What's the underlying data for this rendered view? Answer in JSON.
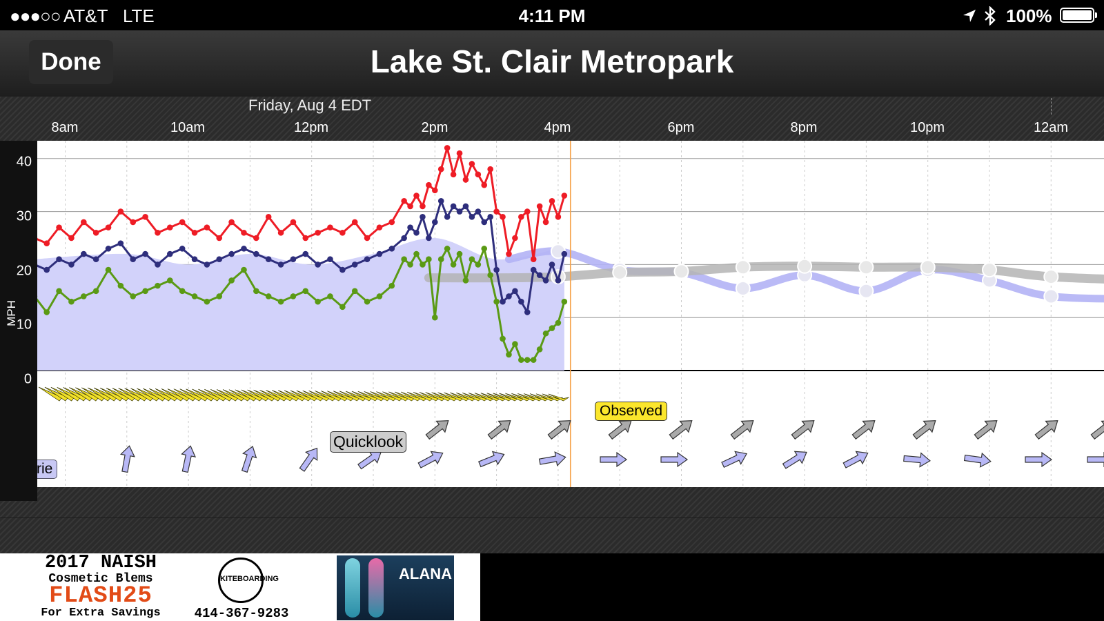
{
  "status_bar": {
    "signal": "●●●○○",
    "carrier": "AT&T",
    "network": "LTE",
    "time": "4:11 PM",
    "battery": "100%"
  },
  "nav": {
    "done_label": "Done",
    "title": "Lake St. Clair Metropark"
  },
  "chart_header": {
    "date": "Friday, Aug 4 EDT",
    "hours": [
      "8am",
      "10am",
      "12pm",
      "2pm",
      "4pm",
      "6pm",
      "8pm",
      "10pm",
      "12am"
    ]
  },
  "labels": {
    "observed": "Observed",
    "quicklook": "Quicklook",
    "model_partial": "rie"
  },
  "colors": {
    "gust": "#ee1c25",
    "average": "#2e2e7c",
    "lull": "#5a9a14",
    "forecast_band": "#d2d2fa",
    "forecast_line": "#b3b3f5",
    "quicklook_line": "#b4b4b4",
    "now_marker": "#f5a24a",
    "observed_arrows": "#f2e12a"
  },
  "chart_data": {
    "type": "line",
    "xlabel": "",
    "ylabel": "MPH",
    "ylim": [
      0,
      44
    ],
    "yticks": [
      0,
      10,
      20,
      30,
      40
    ],
    "xlim": [
      "7:30",
      "1:35"
    ],
    "now": "16:12",
    "series": [
      {
        "name": "",
        "color": "#ee1c25",
        "x": [
          "7:30",
          "7:42",
          "7:54",
          "8:06",
          "8:18",
          "8:30",
          "8:42",
          "8:54",
          "9:06",
          "9:18",
          "9:30",
          "9:42",
          "9:54",
          "10:06",
          "10:18",
          "10:30",
          "10:42",
          "10:54",
          "11:06",
          "11:18",
          "11:30",
          "11:42",
          "11:54",
          "12:06",
          "12:18",
          "12:30",
          "12:42",
          "12:54",
          "13:06",
          "13:18",
          "13:30",
          "13:36",
          "13:42",
          "13:48",
          "13:54",
          "14:00",
          "14:06",
          "14:12",
          "14:18",
          "14:24",
          "14:30",
          "14:36",
          "14:42",
          "14:48",
          "14:54",
          "15:00",
          "15:06",
          "15:12",
          "15:18",
          "15:24",
          "15:30",
          "15:36",
          "15:42",
          "15:48",
          "15:54",
          "16:00",
          "16:06"
        ],
        "values": [
          25,
          24,
          27,
          25,
          28,
          26,
          27,
          30,
          28,
          29,
          26,
          27,
          28,
          26,
          27,
          25,
          28,
          26,
          25,
          29,
          26,
          28,
          25,
          26,
          27,
          26,
          28,
          25,
          27,
          28,
          32,
          31,
          33,
          31,
          35,
          34,
          38,
          42,
          37,
          41,
          36,
          39,
          37,
          35,
          38,
          30,
          29,
          22,
          25,
          29,
          30,
          21,
          31,
          28,
          32,
          29,
          33
        ]
      },
      {
        "name": "",
        "color": "#2e2e7c",
        "x": [
          "7:30",
          "7:42",
          "7:54",
          "8:06",
          "8:18",
          "8:30",
          "8:42",
          "8:54",
          "9:06",
          "9:18",
          "9:30",
          "9:42",
          "9:54",
          "10:06",
          "10:18",
          "10:30",
          "10:42",
          "10:54",
          "11:06",
          "11:18",
          "11:30",
          "11:42",
          "11:54",
          "12:06",
          "12:18",
          "12:30",
          "12:42",
          "12:54",
          "13:06",
          "13:18",
          "13:30",
          "13:36",
          "13:42",
          "13:48",
          "13:54",
          "14:00",
          "14:06",
          "14:12",
          "14:18",
          "14:24",
          "14:30",
          "14:36",
          "14:42",
          "14:48",
          "14:54",
          "15:00",
          "15:06",
          "15:12",
          "15:18",
          "15:24",
          "15:30",
          "15:36",
          "15:42",
          "15:48",
          "15:54",
          "16:00",
          "16:06"
        ],
        "values": [
          20,
          19,
          21,
          20,
          22,
          21,
          23,
          24,
          21,
          22,
          20,
          22,
          23,
          21,
          20,
          21,
          22,
          23,
          22,
          21,
          20,
          21,
          22,
          20,
          21,
          19,
          20,
          21,
          22,
          23,
          25,
          27,
          26,
          29,
          25,
          28,
          32,
          29,
          31,
          30,
          31,
          29,
          30,
          28,
          29,
          19,
          13,
          14,
          15,
          13,
          11,
          19,
          18,
          17,
          20,
          17,
          22
        ]
      },
      {
        "name": "",
        "color": "#5a9a14",
        "x": [
          "7:30",
          "7:42",
          "7:54",
          "8:06",
          "8:18",
          "8:30",
          "8:42",
          "8:54",
          "9:06",
          "9:18",
          "9:30",
          "9:42",
          "9:54",
          "10:06",
          "10:18",
          "10:30",
          "10:42",
          "10:54",
          "11:06",
          "11:18",
          "11:30",
          "11:42",
          "11:54",
          "12:06",
          "12:18",
          "12:30",
          "12:42",
          "12:54",
          "13:06",
          "13:18",
          "13:30",
          "13:36",
          "13:42",
          "13:48",
          "13:54",
          "14:00",
          "14:06",
          "14:12",
          "14:18",
          "14:24",
          "14:30",
          "14:36",
          "14:42",
          "14:48",
          "14:54",
          "15:00",
          "15:06",
          "15:12",
          "15:18",
          "15:24",
          "15:30",
          "15:36",
          "15:42",
          "15:48",
          "15:54",
          "16:00",
          "16:06"
        ],
        "values": [
          14,
          11,
          15,
          13,
          14,
          15,
          19,
          16,
          14,
          15,
          16,
          17,
          15,
          14,
          13,
          14,
          17,
          19,
          15,
          14,
          13,
          14,
          15,
          13,
          14,
          12,
          15,
          13,
          14,
          16,
          21,
          20,
          22,
          20,
          21,
          10,
          21,
          23,
          20,
          22,
          17,
          21,
          20,
          23,
          18,
          13,
          6,
          3,
          5,
          2,
          2,
          2,
          4,
          7,
          8,
          9,
          13
        ]
      },
      {
        "name": "",
        "color": "#b3b3f5",
        "x": [
          "15:12",
          "16:00",
          "17:00",
          "18:00",
          "19:00",
          "20:00",
          "21:00",
          "22:00",
          "23:00",
          "0:00",
          "1:35"
        ],
        "values": [
          21,
          22.5,
          19,
          18.5,
          15.5,
          18,
          15,
          19,
          17,
          14,
          13.5
        ]
      },
      {
        "name": "",
        "color": "#b4b4b4",
        "x": [
          "13:54",
          "15:12",
          "16:00",
          "17:00",
          "18:00",
          "19:00",
          "20:00",
          "21:00",
          "22:00",
          "23:00",
          "0:00",
          "1:35"
        ],
        "values": [
          17.5,
          17.5,
          17.7,
          18.5,
          18.7,
          19.5,
          19.7,
          19.5,
          19.5,
          19,
          17.7,
          17
        ]
      },
      {
        "name": "",
        "color": "#d2d2fa",
        "x": [
          "7:30",
          "9:00",
          "10:00",
          "11:00",
          "12:00",
          "13:00",
          "14:00",
          "15:00",
          "16:00",
          "16:06"
        ],
        "values": [
          21,
          22,
          20,
          22,
          20,
          22,
          25,
          21,
          23,
          23
        ]
      }
    ]
  }
}
